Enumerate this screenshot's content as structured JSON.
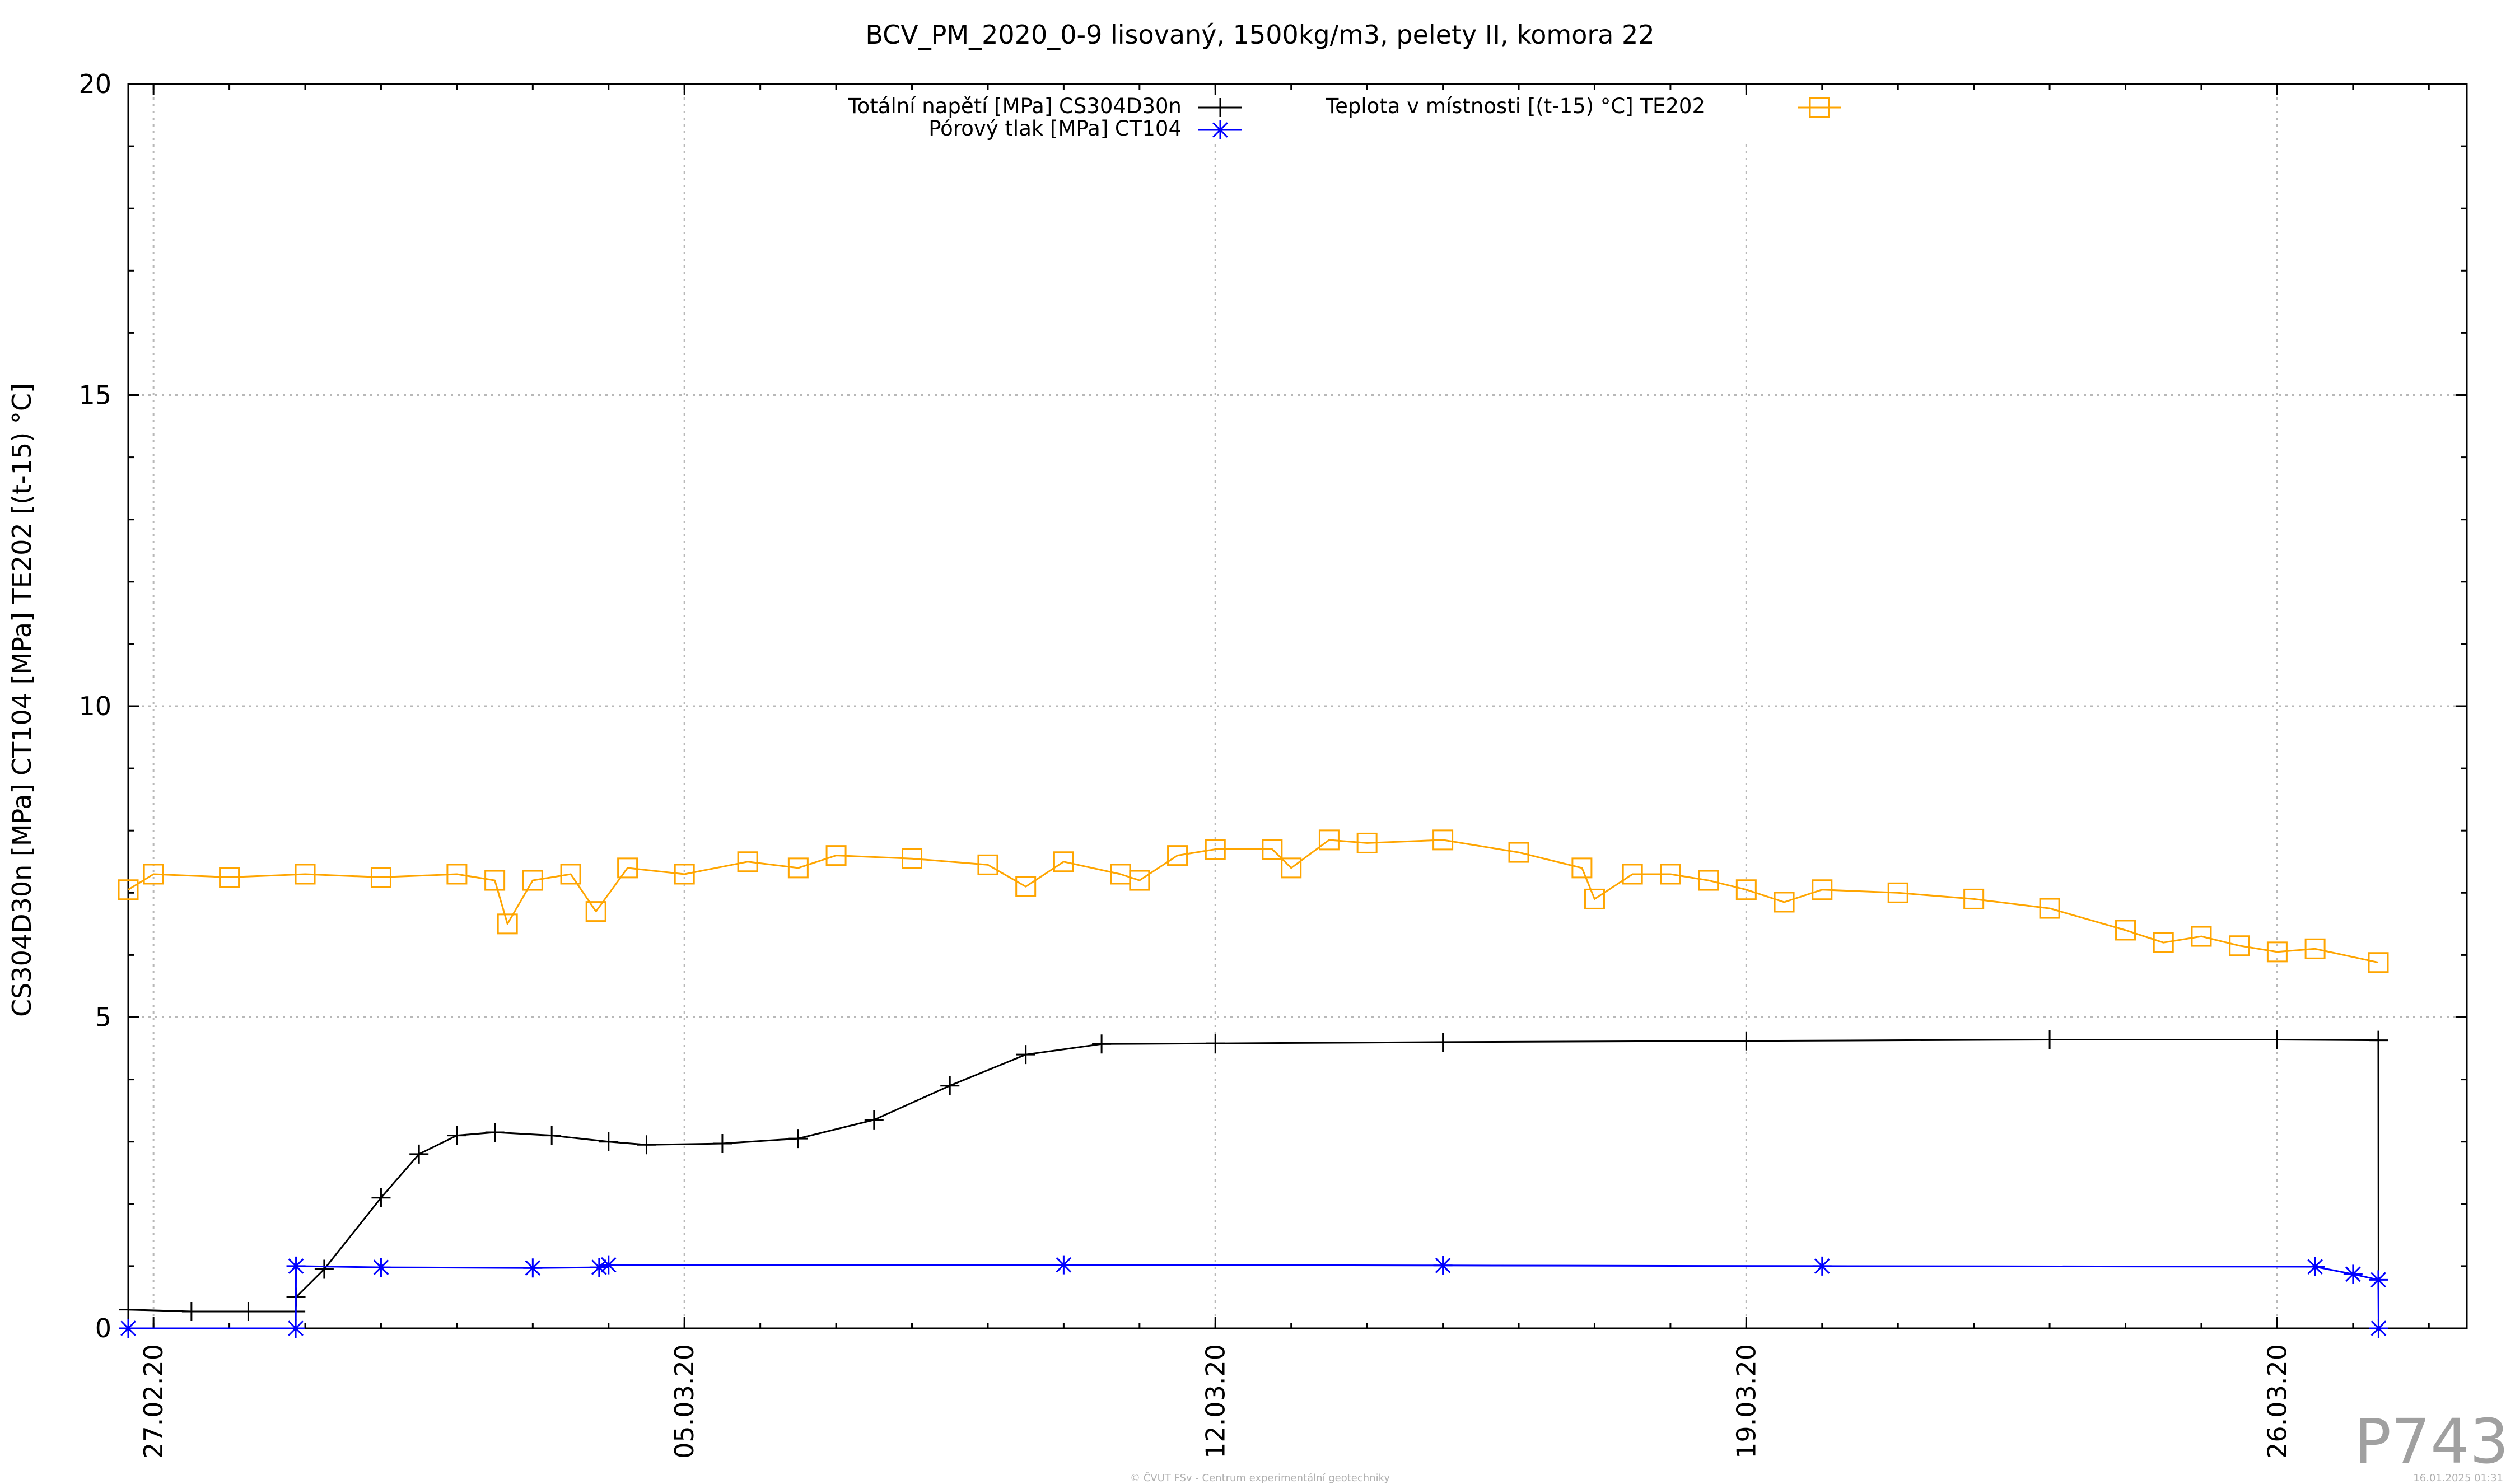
{
  "chart_data": {
    "type": "line",
    "title": "BCV_PM_2020_0-9 lisovaný, 1500kg/m3, pelety II, komora 22",
    "ylabel": "CS304D30n [MPa] CT104 [MPa] TE202 [(t-15) °C]",
    "xlabel": "",
    "x_range": [
      "2020-02-26 16:00",
      "2020-03-28 12:00"
    ],
    "ylim": [
      0,
      20
    ],
    "y_ticks": [
      0,
      5,
      10,
      15,
      20
    ],
    "y_tick_labels": [
      "0",
      "5",
      "10",
      "15",
      "20"
    ],
    "x_ticks": [
      "2020-02-27",
      "2020-03-05",
      "2020-03-12",
      "2020-03-19",
      "2020-03-26"
    ],
    "x_tick_labels": [
      "27.02.20",
      "05.03.20",
      "12.03.20",
      "19.03.20",
      "26.03.20"
    ],
    "grid": true,
    "legend_placement": "top-center",
    "series": [
      {
        "name": "Totální napětí [MPa] CS304D30n",
        "color": "#000000",
        "marker": "plus",
        "points": [
          [
            "2020-02-26 16:00",
            0.3
          ],
          [
            "2020-02-27 12:00",
            0.27
          ],
          [
            "2020-02-28 06:00",
            0.27
          ],
          [
            "2020-02-28 21:00",
            0.27
          ],
          [
            "2020-02-28 21:05",
            0.5
          ],
          [
            "2020-02-29 06:00",
            0.95
          ],
          [
            "2020-03-01 00:00",
            2.1
          ],
          [
            "2020-03-01 12:00",
            2.8
          ],
          [
            "2020-03-02 00:00",
            3.1
          ],
          [
            "2020-03-02 12:00",
            3.15
          ],
          [
            "2020-03-03 06:00",
            3.1
          ],
          [
            "2020-03-04 00:00",
            3.0
          ],
          [
            "2020-03-04 12:00",
            2.95
          ],
          [
            "2020-03-05 12:00",
            2.97
          ],
          [
            "2020-03-06 12:00",
            3.05
          ],
          [
            "2020-03-07 12:00",
            3.35
          ],
          [
            "2020-03-08 12:00",
            3.9
          ],
          [
            "2020-03-09 12:00",
            4.4
          ],
          [
            "2020-03-10 12:00",
            4.57
          ],
          [
            "2020-03-12 00:00",
            4.58
          ],
          [
            "2020-03-15 00:00",
            4.6
          ],
          [
            "2020-03-19 00:00",
            4.62
          ],
          [
            "2020-03-23 00:00",
            4.64
          ],
          [
            "2020-03-26 00:00",
            4.64
          ],
          [
            "2020-03-27 08:00",
            4.63
          ],
          [
            "2020-03-27 08:05",
            0.0
          ]
        ]
      },
      {
        "name": "Pórový tlak [MPa] CT104",
        "color": "#0000ff",
        "marker": "star",
        "points": [
          [
            "2020-02-26 16:00",
            0.0
          ],
          [
            "2020-02-28 21:00",
            0.0
          ],
          [
            "2020-02-28 21:05",
            1.0
          ],
          [
            "2020-03-01 00:00",
            0.98
          ],
          [
            "2020-03-03 00:00",
            0.97
          ],
          [
            "2020-03-03 21:00",
            0.98
          ],
          [
            "2020-03-04 00:00",
            1.02
          ],
          [
            "2020-03-10 00:00",
            1.02
          ],
          [
            "2020-03-15 00:00",
            1.01
          ],
          [
            "2020-03-20 00:00",
            1.0
          ],
          [
            "2020-03-26 12:00",
            0.99
          ],
          [
            "2020-03-27 00:00",
            0.87
          ],
          [
            "2020-03-27 08:00",
            0.78
          ],
          [
            "2020-03-27 08:05",
            0.0
          ]
        ]
      },
      {
        "name": "Teplota v místnosti [(t-15) °C] TE202",
        "color": "#ffa500",
        "marker": "square",
        "points": [
          [
            "2020-02-26 16:00",
            7.05
          ],
          [
            "2020-02-27 00:00",
            7.3
          ],
          [
            "2020-02-28 00:00",
            7.25
          ],
          [
            "2020-02-29 00:00",
            7.3
          ],
          [
            "2020-03-01 00:00",
            7.25
          ],
          [
            "2020-03-02 00:00",
            7.3
          ],
          [
            "2020-03-02 12:00",
            7.2
          ],
          [
            "2020-03-02 16:00",
            6.5
          ],
          [
            "2020-03-03 00:00",
            7.2
          ],
          [
            "2020-03-03 12:00",
            7.3
          ],
          [
            "2020-03-03 20:00",
            6.7
          ],
          [
            "2020-03-04 06:00",
            7.4
          ],
          [
            "2020-03-05 00:00",
            7.3
          ],
          [
            "2020-03-05 20:00",
            7.5
          ],
          [
            "2020-03-06 12:00",
            7.4
          ],
          [
            "2020-03-07 00:00",
            7.6
          ],
          [
            "2020-03-08 00:00",
            7.55
          ],
          [
            "2020-03-09 00:00",
            7.45
          ],
          [
            "2020-03-09 12:00",
            7.1
          ],
          [
            "2020-03-10 00:00",
            7.5
          ],
          [
            "2020-03-10 18:00",
            7.3
          ],
          [
            "2020-03-11 00:00",
            7.2
          ],
          [
            "2020-03-11 12:00",
            7.6
          ],
          [
            "2020-03-12 00:00",
            7.7
          ],
          [
            "2020-03-12 18:00",
            7.7
          ],
          [
            "2020-03-13 00:00",
            7.4
          ],
          [
            "2020-03-13 12:00",
            7.85
          ],
          [
            "2020-03-14 00:00",
            7.8
          ],
          [
            "2020-03-15 00:00",
            7.85
          ],
          [
            "2020-03-16 00:00",
            7.65
          ],
          [
            "2020-03-16 20:00",
            7.4
          ],
          [
            "2020-03-17 00:00",
            6.9
          ],
          [
            "2020-03-17 12:00",
            7.3
          ],
          [
            "2020-03-18 00:00",
            7.3
          ],
          [
            "2020-03-18 12:00",
            7.2
          ],
          [
            "2020-03-19 00:00",
            7.05
          ],
          [
            "2020-03-19 12:00",
            6.85
          ],
          [
            "2020-03-20 00:00",
            7.05
          ],
          [
            "2020-03-21 00:00",
            7.0
          ],
          [
            "2020-03-22 00:00",
            6.9
          ],
          [
            "2020-03-23 00:00",
            6.75
          ],
          [
            "2020-03-24 00:00",
            6.4
          ],
          [
            "2020-03-24 12:00",
            6.2
          ],
          [
            "2020-03-25 00:00",
            6.3
          ],
          [
            "2020-03-25 12:00",
            6.15
          ],
          [
            "2020-03-26 00:00",
            6.05
          ],
          [
            "2020-03-26 12:00",
            6.1
          ],
          [
            "2020-03-27 08:00",
            5.88
          ]
        ]
      }
    ]
  },
  "watermark": "P743",
  "footer_center": "© ČVUT FSv - Centrum experimentální geotechniky",
  "footer_right": "16.01.2025 01:31"
}
